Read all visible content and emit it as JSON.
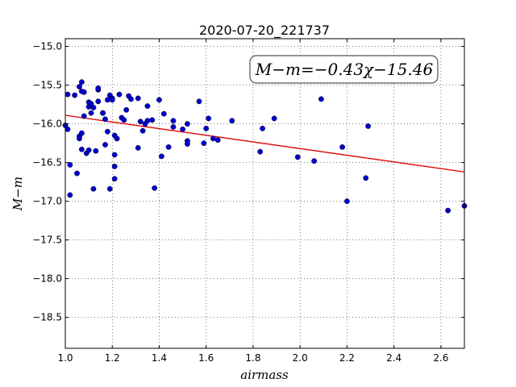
{
  "chart_data": {
    "type": "scatter",
    "title": "2020-07-20_221737",
    "xlabel": "airmass",
    "ylabel": "M−m",
    "xlim": [
      1.0,
      2.7
    ],
    "ylim": [
      -18.9,
      -14.9
    ],
    "y_inverted": true,
    "grid": true,
    "x_ticks": [
      1.0,
      1.2,
      1.4,
      1.6,
      1.8,
      2.0,
      2.2,
      2.4,
      2.6
    ],
    "x_tick_labels": [
      "1.0",
      "1.2",
      "1.4",
      "1.6",
      "1.8",
      "2.0",
      "2.2",
      "2.4",
      "2.6"
    ],
    "y_ticks": [
      -15.0,
      -15.5,
      -16.0,
      -16.5,
      -17.0,
      -17.5,
      -18.0,
      -18.5
    ],
    "y_tick_labels": [
      "−15.0",
      "−15.5",
      "−16.0",
      "−16.5",
      "−17.0",
      "−17.5",
      "−18.0",
      "−18.5"
    ],
    "point_color": "#0000cc",
    "fit_color": "#dd0000",
    "annotation": "M−m=−0.43χ−15.46",
    "fit": {
      "slope": -0.43,
      "intercept": -15.46
    },
    "x": [
      1.0,
      1.01,
      1.01,
      1.02,
      1.02,
      1.04,
      1.05,
      1.06,
      1.06,
      1.06,
      1.07,
      1.07,
      1.07,
      1.07,
      1.08,
      1.08,
      1.09,
      1.1,
      1.1,
      1.1,
      1.11,
      1.11,
      1.12,
      1.12,
      1.13,
      1.14,
      1.14,
      1.14,
      1.16,
      1.16,
      1.17,
      1.17,
      1.18,
      1.18,
      1.19,
      1.19,
      1.2,
      1.2,
      1.21,
      1.21,
      1.21,
      1.21,
      1.22,
      1.22,
      1.23,
      1.24,
      1.25,
      1.26,
      1.27,
      1.28,
      1.31,
      1.31,
      1.32,
      1.33,
      1.34,
      1.35,
      1.35,
      1.37,
      1.38,
      1.4,
      1.41,
      1.42,
      1.44,
      1.46,
      1.46,
      1.5,
      1.52,
      1.52,
      1.52,
      1.57,
      1.59,
      1.6,
      1.61,
      1.63,
      1.65,
      1.71,
      1.83,
      1.84,
      1.89,
      1.99,
      2.06,
      2.09,
      2.18,
      2.2,
      2.28,
      2.29,
      2.63,
      2.7
    ],
    "y": [
      -16.02,
      -16.07,
      -15.62,
      -16.53,
      -16.92,
      -15.63,
      -16.64,
      -15.52,
      -16.16,
      -16.19,
      -16.12,
      -15.46,
      -15.58,
      -16.33,
      -15.9,
      -15.59,
      -16.38,
      -15.72,
      -15.78,
      -16.34,
      -15.74,
      -15.86,
      -15.79,
      -16.84,
      -16.35,
      -15.71,
      -15.56,
      -15.54,
      -15.86,
      -15.86,
      -15.94,
      -16.27,
      -16.1,
      -15.69,
      -16.84,
      -15.63,
      -15.67,
      -15.69,
      -16.4,
      -16.55,
      -16.71,
      -16.15,
      -16.19,
      -16.19,
      -15.62,
      -15.92,
      -15.95,
      -15.82,
      -15.64,
      -15.68,
      -15.67,
      -16.31,
      -15.97,
      -16.09,
      -16.0,
      -15.96,
      -15.77,
      -15.95,
      -16.83,
      -15.69,
      -16.42,
      -15.87,
      -16.3,
      -15.96,
      -16.04,
      -16.07,
      -16.0,
      -16.22,
      -16.26,
      -15.71,
      -16.25,
      -16.06,
      -15.93,
      -16.19,
      -16.21,
      -15.96,
      -16.36,
      -16.06,
      -15.93,
      -16.43,
      -16.48,
      -15.68,
      -16.3,
      -17.0,
      -16.7,
      -16.03,
      -17.12,
      -17.06
    ]
  }
}
